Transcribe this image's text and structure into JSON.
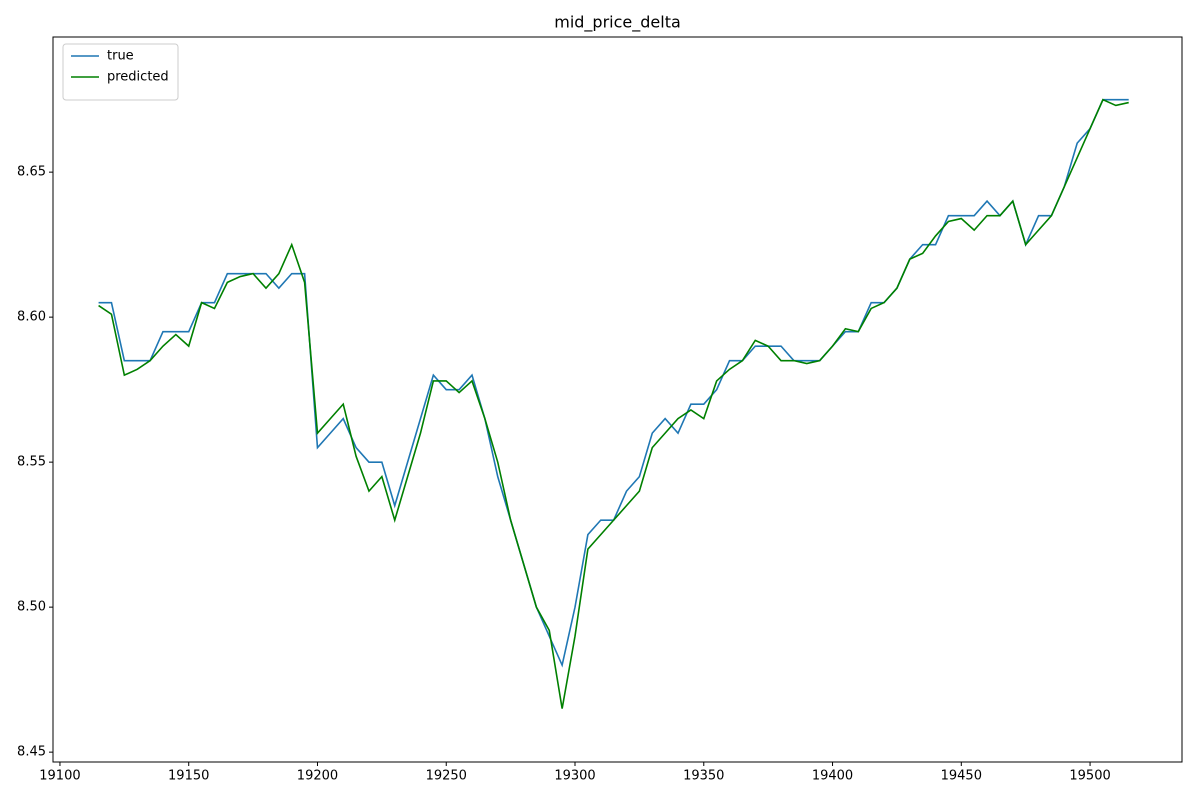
{
  "chart_data": {
    "type": "line",
    "title": "mid_price_delta",
    "x": [
      19115,
      19120,
      19125,
      19130,
      19135,
      19140,
      19145,
      19150,
      19155,
      19160,
      19165,
      19170,
      19175,
      19180,
      19185,
      19190,
      19195,
      19200,
      19205,
      19210,
      19215,
      19220,
      19225,
      19230,
      19235,
      19240,
      19245,
      19250,
      19255,
      19260,
      19265,
      19270,
      19275,
      19280,
      19285,
      19290,
      19295,
      19300,
      19305,
      19310,
      19315,
      19320,
      19325,
      19330,
      19335,
      19340,
      19345,
      19350,
      19355,
      19360,
      19365,
      19370,
      19375,
      19380,
      19385,
      19390,
      19395,
      19400,
      19405,
      19410,
      19415,
      19420,
      19425,
      19430,
      19435,
      19440,
      19445,
      19450,
      19455,
      19460,
      19465,
      19470,
      19475,
      19480,
      19485,
      19490,
      19495,
      19500,
      19505,
      19510,
      19515
    ],
    "series": [
      {
        "name": "true",
        "color": "#1f77b4",
        "values": [
          8.605,
          8.605,
          8.585,
          8.585,
          8.585,
          8.595,
          8.595,
          8.595,
          8.605,
          8.605,
          8.615,
          8.615,
          8.615,
          8.615,
          8.61,
          8.615,
          8.615,
          8.555,
          8.56,
          8.565,
          8.555,
          8.55,
          8.55,
          8.535,
          8.55,
          8.565,
          8.58,
          8.575,
          8.575,
          8.58,
          8.565,
          8.545,
          8.53,
          8.515,
          8.5,
          8.49,
          8.48,
          8.5,
          8.525,
          8.53,
          8.53,
          8.54,
          8.545,
          8.56,
          8.565,
          8.56,
          8.57,
          8.57,
          8.575,
          8.585,
          8.585,
          8.59,
          8.59,
          8.59,
          8.585,
          8.585,
          8.585,
          8.59,
          8.595,
          8.595,
          8.605,
          8.605,
          8.61,
          8.62,
          8.625,
          8.625,
          8.635,
          8.635,
          8.635,
          8.64,
          8.635,
          8.64,
          8.625,
          8.635,
          8.635,
          8.645,
          8.66,
          8.665,
          8.675,
          8.675,
          8.675
        ]
      },
      {
        "name": "predicted",
        "color": "#008000",
        "values": [
          8.604,
          8.601,
          8.58,
          8.582,
          8.585,
          8.59,
          8.594,
          8.59,
          8.605,
          8.603,
          8.612,
          8.614,
          8.615,
          8.61,
          8.615,
          8.625,
          8.612,
          8.56,
          8.565,
          8.57,
          8.552,
          8.54,
          8.545,
          8.53,
          8.545,
          8.56,
          8.578,
          8.578,
          8.574,
          8.578,
          8.565,
          8.55,
          8.53,
          8.515,
          8.5,
          8.492,
          8.465,
          8.49,
          8.52,
          8.525,
          8.53,
          8.535,
          8.54,
          8.555,
          8.56,
          8.565,
          8.568,
          8.565,
          8.578,
          8.582,
          8.585,
          8.592,
          8.59,
          8.585,
          8.585,
          8.584,
          8.585,
          8.59,
          8.596,
          8.595,
          8.603,
          8.605,
          8.61,
          8.62,
          8.622,
          8.628,
          8.633,
          8.634,
          8.63,
          8.635,
          8.635,
          8.64,
          8.625,
          8.63,
          8.635,
          8.645,
          8.655,
          8.665,
          8.675,
          8.673,
          8.674
        ]
      }
    ],
    "xlim": [
      19097.3,
      19535.7
    ],
    "ylim": [
      8.4466,
      8.6966
    ],
    "xticks": [
      19100,
      19150,
      19200,
      19250,
      19300,
      19350,
      19400,
      19450,
      19500
    ],
    "yticks": [
      8.45,
      {
        "value": 8.5,
        "label": "8.50"
      },
      8.55,
      {
        "value": 8.6,
        "label": "8.60"
      },
      8.65
    ],
    "legend": "upper left"
  }
}
